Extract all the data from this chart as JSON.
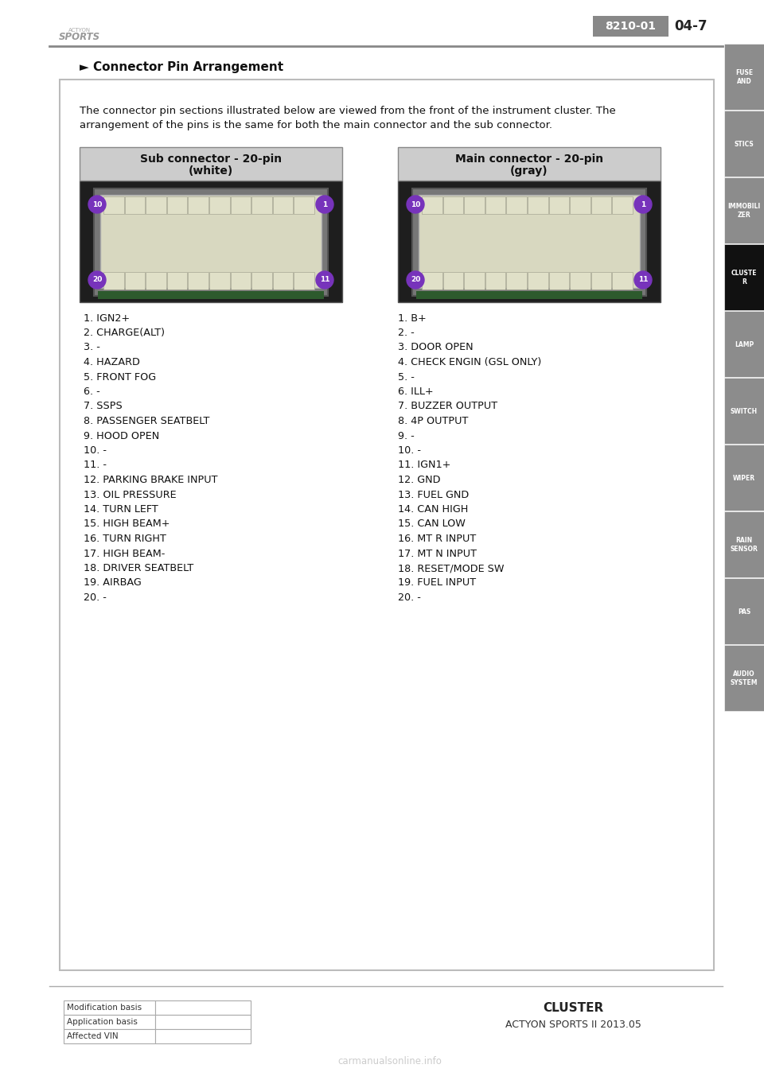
{
  "page_num": "04-7",
  "doc_code": "8210-01",
  "section_title": "► Connector Pin Arrangement",
  "body_text_line1": "The connector pin sections illustrated below are viewed from the front of the instrument cluster. The",
  "body_text_line2": "arrangement of the pins is the same for both the main connector and the sub connector.",
  "sub_connector_title_line1": "Sub connector - 20-pin",
  "sub_connector_title_line2": "(white)",
  "main_connector_title_line1": "Main connector - 20-pin",
  "main_connector_title_line2": "(gray)",
  "sub_pins": [
    "1. IGN2+",
    "2. CHARGE(ALT)",
    "3. -",
    "4. HAZARD",
    "5. FRONT FOG",
    "6. -",
    "7. SSPS",
    "8. PASSENGER SEATBELT",
    "9. HOOD OPEN",
    "10. -",
    "11. -",
    "12. PARKING BRAKE INPUT",
    "13. OIL PRESSURE",
    "14. TURN LEFT",
    "15. HIGH BEAM+",
    "16. TURN RIGHT",
    "17. HIGH BEAM-",
    "18. DRIVER SEATBELT",
    "19. AIRBAG",
    "20. -"
  ],
  "main_pins": [
    "1. B+",
    "2. -",
    "3. DOOR OPEN",
    "4. CHECK ENGIN (GSL ONLY)",
    "5. -",
    "6. ILL+",
    "7. BUZZER OUTPUT",
    "8. 4P OUTPUT",
    "9. -",
    "10. -",
    "11. IGN1+",
    "12. GND",
    "13. FUEL GND",
    "14. CAN HIGH",
    "15. CAN LOW",
    "16. MT R INPUT",
    "17. MT N INPUT",
    "18. RESET/MODE SW",
    "19. FUEL INPUT",
    "20. -"
  ],
  "sidebar_items": [
    "FUSE\nAND",
    "STICS",
    "IMMOBILI\nZER",
    "CLUSTE\nR",
    "LAMP",
    "SWITCH",
    "WIPER",
    "RAIN\nSENSOR",
    "PAS",
    "AUDIO\nSYSTEM"
  ],
  "sidebar_active_index": 3,
  "sidebar_bg": "#8c8c8c",
  "sidebar_active_bg": "#111111",
  "page_bg": "#ffffff",
  "header_line_color": "#888888",
  "doccode_bg": "#888888",
  "footer_items": [
    "Modification basis",
    "Application basis",
    "Affected VIN"
  ],
  "footer_right_line1": "CLUSTER",
  "footer_right_line2": "ACTYON SPORTS II 2013.05",
  "watermark": "carmanualsonline.info",
  "pin_circle_color": "#7733bb"
}
